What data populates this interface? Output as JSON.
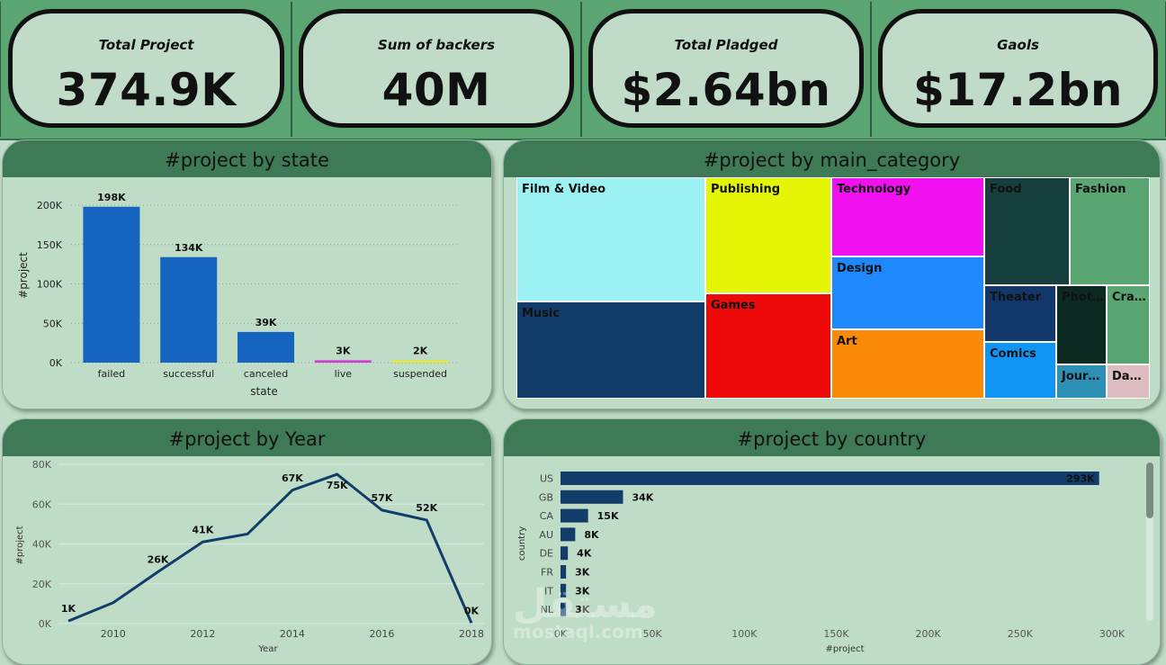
{
  "kpis": [
    {
      "title": "Total Project",
      "value": "374.9K"
    },
    {
      "title": "Sum of backers",
      "value": "40M"
    },
    {
      "title": "Total Pladged",
      "value": "$2.64bn"
    },
    {
      "title": "Gaols",
      "value": "$17.2bn"
    }
  ],
  "panels": {
    "state_title": "#project by state",
    "category_title": "#project by main_category",
    "year_title": "#project by Year",
    "country_title": "#project by country"
  },
  "watermark": {
    "arabic": "مستقل",
    "latin": "mostaql.com"
  },
  "colors": {
    "kpi_strip": "#5ba572",
    "panel_bg": "#bfdcc7",
    "panel_header": "#3f7a56",
    "bar_blue": "#1565c0",
    "navy": "#123d6b"
  },
  "chart_data": [
    {
      "id": "state",
      "type": "bar",
      "xlabel": "state",
      "ylabel": "#project",
      "categories": [
        "failed",
        "successful",
        "canceled",
        "live",
        "suspended"
      ],
      "values": [
        198000,
        134000,
        39000,
        3000,
        2000
      ],
      "labels": [
        "198K",
        "134K",
        "39K",
        "3K",
        "2K"
      ],
      "bar_colors": [
        "#1565c0",
        "#1565c0",
        "#1565c0",
        "#d838d8",
        "#e8e830"
      ],
      "ylim": [
        0,
        200000
      ],
      "yticks": [
        0,
        50000,
        100000,
        150000,
        200000
      ],
      "ytick_labels": [
        "0K",
        "50K",
        "100K",
        "150K",
        "200K"
      ],
      "grid": true
    },
    {
      "id": "category",
      "type": "treemap",
      "categories": [
        "Film & Video",
        "Music",
        "Publishing",
        "Games",
        "Technology",
        "Design",
        "Art",
        "Food",
        "Fashion",
        "Theater",
        "Phot…",
        "Cra…",
        "Comics",
        "Jour…",
        "Da…"
      ],
      "colors": [
        "#9cf2f2",
        "#123d6b",
        "#e5f506",
        "#ef0a0a",
        "#f010f0",
        "#1f88fc",
        "#fa8a08",
        "#173f3e",
        "#5aa673",
        "#12376a",
        "#0c2a22",
        "#5aa673",
        "#1195f5",
        "#2e8fb5",
        "#ddbcc2"
      ]
    },
    {
      "id": "year",
      "type": "line",
      "xlabel": "Year",
      "ylabel": "#project",
      "x": [
        2009,
        2010,
        2011,
        2012,
        2013,
        2014,
        2015,
        2016,
        2017,
        2018
      ],
      "values": [
        1300,
        10500,
        26000,
        41000,
        45000,
        67000,
        75000,
        57000,
        52000,
        300
      ],
      "point_labels": [
        "1K",
        "",
        "26K",
        "41K",
        "",
        "67K",
        "75K",
        "57K",
        "52K",
        "0K"
      ],
      "xticks": [
        2010,
        2012,
        2014,
        2016,
        2018
      ],
      "ylim": [
        0,
        80000
      ],
      "yticks": [
        0,
        20000,
        40000,
        60000,
        80000
      ],
      "ytick_labels": [
        "0K",
        "20K",
        "40K",
        "60K",
        "80K"
      ],
      "grid": true,
      "line_color": "#123d6b"
    },
    {
      "id": "country",
      "type": "bar",
      "orientation": "horizontal",
      "xlabel": "#project",
      "ylabel": "country",
      "categories": [
        "US",
        "GB",
        "CA",
        "AU",
        "DE",
        "FR",
        "IT",
        "NL"
      ],
      "values": [
        293000,
        34000,
        15000,
        8000,
        4000,
        3000,
        3000,
        3000
      ],
      "labels": [
        "293K",
        "34K",
        "15K",
        "8K",
        "4K",
        "3K",
        "3K",
        "3K"
      ],
      "xlim": [
        0,
        300000
      ],
      "xticks": [
        0,
        50000,
        100000,
        150000,
        200000,
        250000,
        300000
      ],
      "xtick_labels": [
        "0K",
        "50K",
        "100K",
        "150K",
        "200K",
        "250K",
        "300K"
      ],
      "bar_color": "#123d6b"
    }
  ]
}
